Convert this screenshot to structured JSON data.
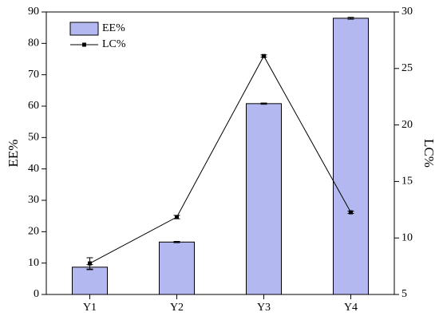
{
  "chart_data": {
    "type": "bar_line",
    "categories": [
      "Y1",
      "Y2",
      "Y3",
      "Y4"
    ],
    "series": [
      {
        "name": "EE%",
        "type": "bar",
        "color": "#b4b8f0",
        "values": [
          8.7,
          16.7,
          60.8,
          88
        ],
        "errors": [
          0.8,
          0.2,
          0.2,
          0.3
        ]
      },
      {
        "name": "LC%",
        "type": "line",
        "axis": "y2",
        "color": "#000000",
        "values": [
          7.75,
          11.85,
          26.1,
          12.27
        ],
        "errors": [
          0.5,
          0.15,
          0.1,
          0.1
        ]
      }
    ],
    "ylabel": "EE%",
    "y2label": "LC%",
    "ylim": [
      0,
      90
    ],
    "yticks": [
      0,
      10,
      20,
      30,
      40,
      50,
      60,
      70,
      80,
      90
    ],
    "y2lim": [
      5,
      30
    ],
    "y2ticks": [
      5,
      10,
      15,
      20,
      25,
      30
    ],
    "legend": "upper-left"
  }
}
